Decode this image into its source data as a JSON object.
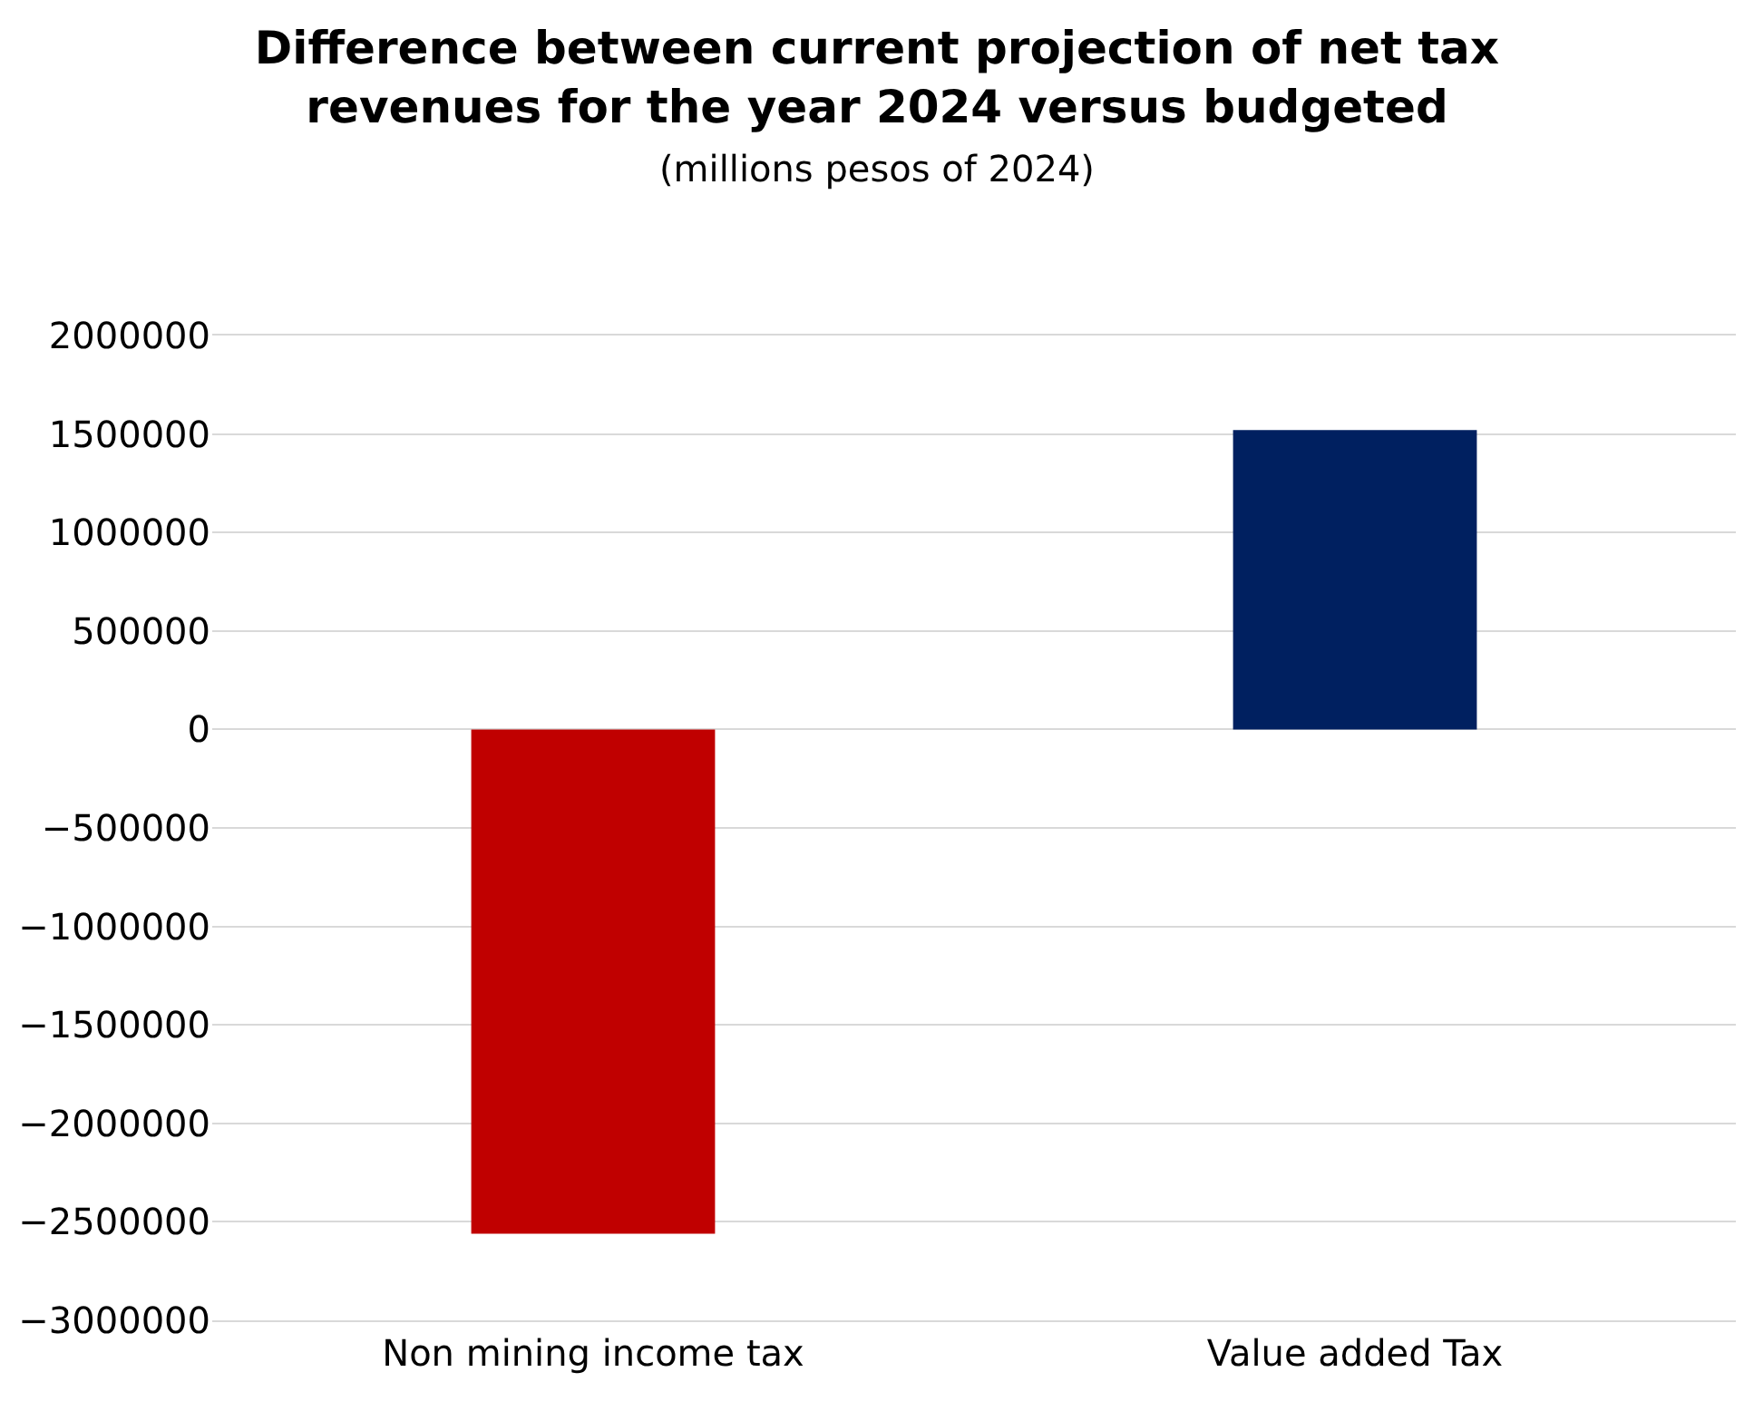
{
  "chart_data": {
    "type": "bar",
    "title": "Difference between current projection of net tax revenues for the year 2024 versus budgeted",
    "subtitle": "(millions pesos of 2024)",
    "categories": [
      "Non mining income tax",
      "Value added Tax"
    ],
    "values": [
      -2560000,
      1520000
    ],
    "colors": [
      "#c00000",
      "#002060"
    ],
    "ylim": [
      -3000000,
      2000000
    ],
    "yticks": [
      -3000000,
      -2500000,
      -2000000,
      -1500000,
      -1000000,
      -500000,
      0,
      500000,
      1000000,
      1500000,
      2000000
    ],
    "grid": "y"
  }
}
